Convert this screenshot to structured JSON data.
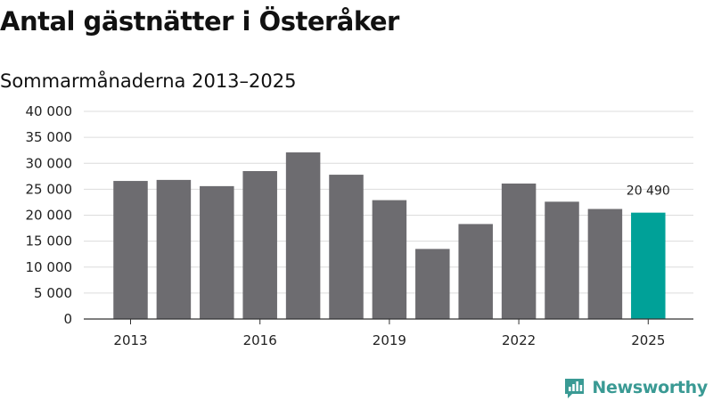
{
  "title": "Antal gästnätter i Österåker",
  "subtitle": "Sommarmånaderna 2013–2025",
  "brand": {
    "name": "Newsworthy",
    "icon": "newsworthy-logo-icon",
    "color": "#3a9a94"
  },
  "colors": {
    "bar": "#6d6c70",
    "highlight": "#00a198",
    "grid": "#dcdcdc",
    "axis": "#333333"
  },
  "chart_data": {
    "type": "bar",
    "title": "Antal gästnätter i Österåker",
    "subtitle": "Sommarmånaderna 2013–2025",
    "xlabel": "",
    "ylabel": "",
    "categories": [
      "2013",
      "2014",
      "2015",
      "2016",
      "2017",
      "2018",
      "2019",
      "2020",
      "2021",
      "2022",
      "2023",
      "2024",
      "2025"
    ],
    "values": [
      26600,
      26800,
      25600,
      28500,
      32100,
      27800,
      22900,
      13500,
      18300,
      26100,
      22600,
      21200,
      20490
    ],
    "highlight_index": 12,
    "x_tick_labels": [
      "2013",
      "2016",
      "2019",
      "2022",
      "2025"
    ],
    "y_ticks": [
      0,
      5000,
      10000,
      15000,
      20000,
      25000,
      30000,
      35000,
      40000
    ],
    "y_tick_labels": [
      "0",
      "5 000",
      "10 000",
      "15 000",
      "20 000",
      "25 000",
      "30 000",
      "35 000",
      "40 000"
    ],
    "ylim": [
      0,
      40000
    ],
    "grid": true,
    "legend": "none",
    "data_labels": [
      {
        "index": 12,
        "text": "20 490"
      }
    ]
  }
}
